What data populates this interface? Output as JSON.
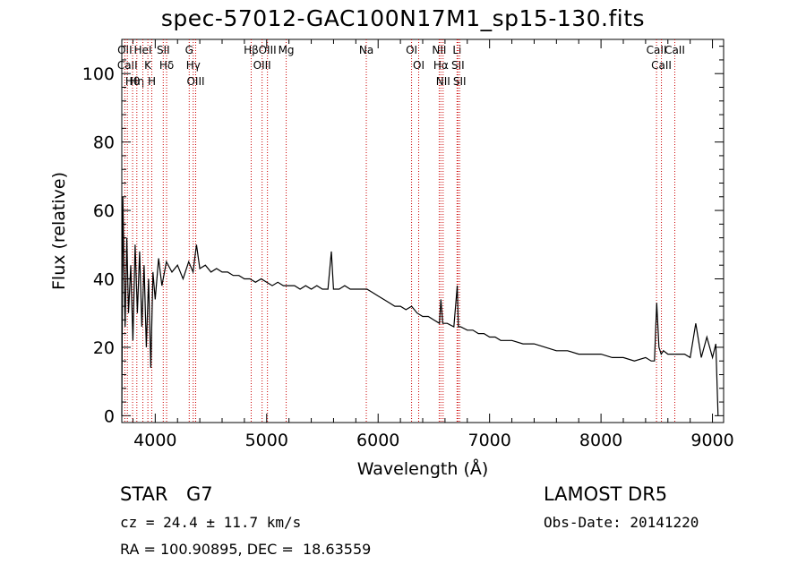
{
  "title": "spec-57012-GAC100N17M1_sp15-130.fits",
  "info": {
    "class_label": "STAR",
    "subclass_label": "G7",
    "survey": "LAMOST DR5",
    "cz": "cz = 24.4 ± 11.7 km/s",
    "obs_date": "Obs-Date: 20141220",
    "coords": "RA = 100.90895, DEC =  18.63559"
  },
  "chart_data": {
    "type": "line",
    "title": "spec-57012-GAC100N17M1_sp15-130.fits",
    "xlabel": "Wavelength (Å)",
    "ylabel": "Flux (relative)",
    "xlim": [
      3700,
      9100
    ],
    "ylim": [
      -2,
      110
    ],
    "xticks": [
      4000,
      5000,
      6000,
      7000,
      8000,
      9000
    ],
    "yticks": [
      0,
      20,
      40,
      60,
      80,
      100
    ],
    "line_color": "#000000",
    "marker_color": "#cc0000",
    "series": [
      {
        "x": [
          3700,
          3710,
          3720,
          3730,
          3745,
          3760,
          3780,
          3800,
          3820,
          3840,
          3860,
          3880,
          3900,
          3920,
          3940,
          3960,
          3980,
          4000,
          4030,
          4060,
          4100,
          4150,
          4200,
          4250,
          4300,
          4340,
          4370,
          4400,
          4450,
          4500,
          4550,
          4600,
          4650,
          4700,
          4750,
          4800,
          4850,
          4900,
          4950,
          5000,
          5050,
          5100,
          5150,
          5200,
          5250,
          5300,
          5350,
          5400,
          5450,
          5500,
          5550,
          5580,
          5600,
          5650,
          5700,
          5750,
          5800,
          5850,
          5900,
          5950,
          6000,
          6050,
          6100,
          6150,
          6200,
          6250,
          6300,
          6350,
          6400,
          6450,
          6500,
          6550,
          6563,
          6580,
          6620,
          6680,
          6710,
          6720,
          6740,
          6800,
          6850,
          6900,
          6950,
          7000,
          7050,
          7100,
          7150,
          7200,
          7300,
          7400,
          7500,
          7600,
          7700,
          7800,
          7900,
          8000,
          8100,
          8200,
          8300,
          8400,
          8450,
          8480,
          8500,
          8520,
          8540,
          8560,
          8600,
          8650,
          8700,
          8750,
          8800,
          8850,
          8900,
          8950,
          9000,
          9030,
          9050
        ],
        "y": [
          0,
          64,
          42,
          26,
          52,
          30,
          44,
          22,
          50,
          30,
          48,
          26,
          44,
          20,
          40,
          14,
          42,
          34,
          46,
          38,
          45,
          42,
          44,
          40,
          45,
          42,
          50,
          43,
          44,
          42,
          43,
          42,
          42,
          41,
          41,
          40,
          40,
          39,
          40,
          39,
          38,
          39,
          38,
          38,
          38,
          37,
          38,
          37,
          38,
          37,
          37,
          48,
          37,
          37,
          38,
          37,
          37,
          37,
          37,
          36,
          35,
          34,
          33,
          32,
          32,
          31,
          32,
          30,
          29,
          29,
          28,
          27,
          34,
          27,
          27,
          26,
          38,
          26,
          26,
          25,
          25,
          24,
          24,
          23,
          23,
          22,
          22,
          22,
          21,
          21,
          20,
          19,
          19,
          18,
          18,
          18,
          17,
          17,
          16,
          17,
          16,
          16,
          33,
          20,
          18,
          19,
          18,
          18,
          18,
          18,
          17,
          27,
          17,
          23,
          17,
          21,
          0
        ]
      }
    ],
    "lines": [
      {
        "w": 3727,
        "labels": [
          "OII"
        ]
      },
      {
        "w": 3750,
        "labels": [
          "CaII"
        ]
      },
      {
        "w": 3797,
        "labels": [
          "Hθ"
        ]
      },
      {
        "w": 3835,
        "labels": [
          "Hη"
        ]
      },
      {
        "w": 3889,
        "labels": [
          "HeI"
        ]
      },
      {
        "w": 3934,
        "labels": [
          "K"
        ]
      },
      {
        "w": 3969,
        "labels": [
          "H"
        ]
      },
      {
        "w": 4072,
        "labels": [
          "SII"
        ]
      },
      {
        "w": 4102,
        "labels": [
          "Hδ"
        ]
      },
      {
        "w": 4305,
        "labels": [
          "G"
        ]
      },
      {
        "w": 4341,
        "labels": [
          "Hγ"
        ]
      },
      {
        "w": 4363,
        "labels": [
          "OIII"
        ]
      },
      {
        "w": 4861,
        "labels": [
          "Hβ"
        ]
      },
      {
        "w": 4959,
        "labels": [
          "OIII"
        ]
      },
      {
        "w": 5007,
        "labels": [
          "OIII"
        ]
      },
      {
        "w": 5175,
        "labels": [
          "Mg"
        ]
      },
      {
        "w": 5894,
        "labels": [
          "Na"
        ]
      },
      {
        "w": 6300,
        "labels": [
          "OI"
        ]
      },
      {
        "w": 6364,
        "labels": [
          "OI"
        ]
      },
      {
        "w": 6548,
        "labels": [
          "NII"
        ]
      },
      {
        "w": 6563,
        "labels": [
          "Hα"
        ]
      },
      {
        "w": 6583,
        "labels": [
          "NII"
        ]
      },
      {
        "w": 6708,
        "labels": [
          "Li"
        ]
      },
      {
        "w": 6716,
        "labels": [
          "SII"
        ]
      },
      {
        "w": 6731,
        "labels": [
          "SII"
        ]
      },
      {
        "w": 8498,
        "labels": [
          "CaII"
        ]
      },
      {
        "w": 8542,
        "labels": [
          "CaII"
        ]
      },
      {
        "w": 8662,
        "labels": [
          "CaII"
        ]
      }
    ]
  }
}
